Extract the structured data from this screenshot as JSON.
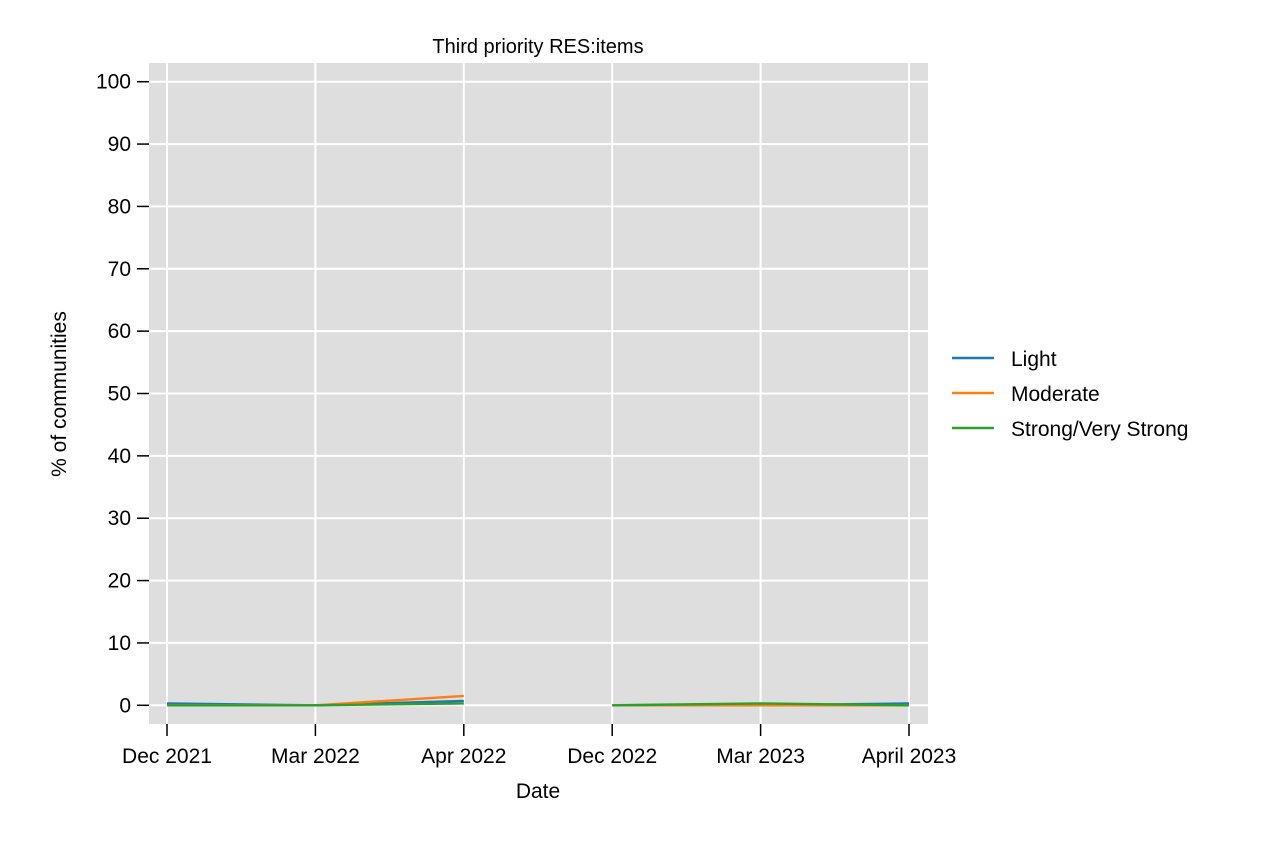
{
  "chart_data": {
    "type": "line",
    "title": "Third priority RES:items",
    "xlabel": "Date",
    "ylabel": "% of communities",
    "categories": [
      "Dec 2021",
      "Mar 2022",
      "Apr 2022",
      "Dec 2022",
      "Mar 2023",
      "April 2023"
    ],
    "yticks": [
      0,
      10,
      20,
      30,
      40,
      50,
      60,
      70,
      80,
      90,
      100
    ],
    "ylim": [
      -3,
      103
    ],
    "grid": true,
    "legend_position": "right",
    "series": [
      {
        "name": "Light",
        "color": "#1f77b4",
        "values": [
          0.3,
          0.0,
          0.7,
          null,
          0.0,
          0.3
        ]
      },
      {
        "name": "Moderate",
        "color": "#ff7f0e",
        "values": [
          0.0,
          0.0,
          1.5,
          0.0,
          0.0,
          0.0
        ]
      },
      {
        "name": "Strong/Very Strong",
        "color": "#2ca02c",
        "values": [
          0.0,
          0.0,
          0.3,
          0.0,
          0.3,
          0.0
        ]
      }
    ]
  }
}
